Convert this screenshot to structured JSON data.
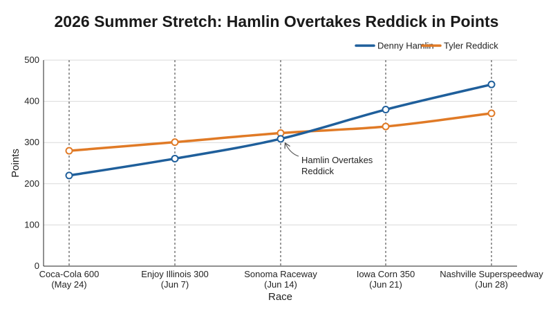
{
  "chart_data": {
    "type": "line",
    "title": "2026 Summer Stretch: Hamlin Overtakes Reddick in Points",
    "xlabel": "Race",
    "ylabel": "Points",
    "ylim": [
      0,
      500
    ],
    "yticks": [
      0,
      100,
      200,
      300,
      400,
      500
    ],
    "grid": true,
    "legend_position": "top-right",
    "categories": [
      [
        "Coca-Cola 600",
        "(May 24)"
      ],
      [
        "Enjoy Illinois 300",
        "(Jun 7)"
      ],
      [
        "Sonoma Raceway",
        "(Jun 14)"
      ],
      [
        "Iowa Corn 350",
        "(Jun 21)"
      ],
      [
        "Nashville Superspeedway",
        "(Jun 28)"
      ]
    ],
    "series": [
      {
        "name": "Denny Hamlin",
        "color": "#1f5f9b",
        "values": [
          220,
          261,
          309,
          380,
          441
        ]
      },
      {
        "name": "Tyler Reddick",
        "color": "#e07a26",
        "values": [
          280,
          301,
          323,
          339,
          371
        ]
      }
    ],
    "annotation": {
      "lines": [
        "Hamlin Overtakes",
        "Reddick"
      ],
      "category_index": 2,
      "series_index": 0
    }
  }
}
